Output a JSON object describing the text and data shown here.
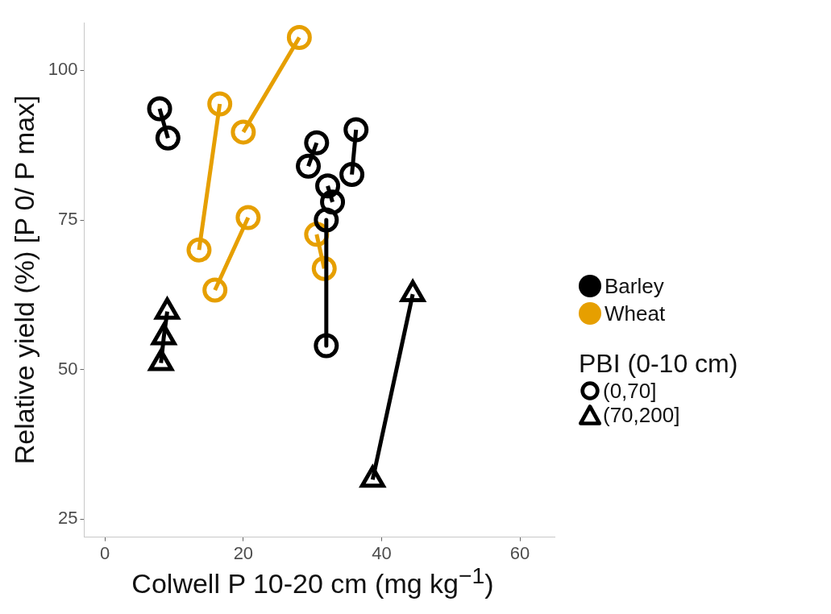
{
  "chart_data": {
    "type": "line",
    "xlabel": "Colwell P 10-20 cm (mg kg$^{−1}$)",
    "ylabel": "Relative yield (%) [P 0/ P max]",
    "xlim": [
      -3,
      65
    ],
    "xticks": [
      0,
      20,
      40,
      60
    ],
    "ylim": [
      22,
      108
    ],
    "yticks": [
      25,
      50,
      75,
      100
    ],
    "grid": false,
    "legend": "right",
    "legend_title": "PBI (0-10 cm)",
    "annotations": [
      "(0,70]",
      "(70,200]"
    ],
    "series": [
      {
        "name": "Barley",
        "color": "#000000",
        "marker": "circle",
        "x": [
          7.9,
          9.1,
          null,
          29.4,
          30.6,
          null,
          32.2,
          32.9,
          null,
          32,
          32,
          null,
          36.3,
          35.7
        ],
        "values": [
          93.6,
          88.7,
          null,
          84,
          87.9,
          null,
          80.7,
          78,
          null,
          75,
          54,
          null,
          90.1,
          82.6
        ]
      },
      {
        "name": "Wheat",
        "color": "#e69f00",
        "marker": "circle",
        "x": [
          13.6,
          16.6,
          null,
          20,
          28.1,
          null,
          15.9,
          20.7,
          null,
          30.6,
          31.7
        ],
        "values": [
          70,
          94.4,
          null,
          89.7,
          105.5,
          null,
          63.3,
          75.4,
          null,
          72.6,
          66.9
        ]
      },
      {
        "color": "#000000",
        "marker": "triangle",
        "x": [
          8.1,
          8.5,
          9,
          null,
          38.7,
          44.5
        ],
        "values": [
          51.1,
          55.4,
          59.7,
          null,
          31.6,
          62.6
        ]
      }
    ]
  }
}
